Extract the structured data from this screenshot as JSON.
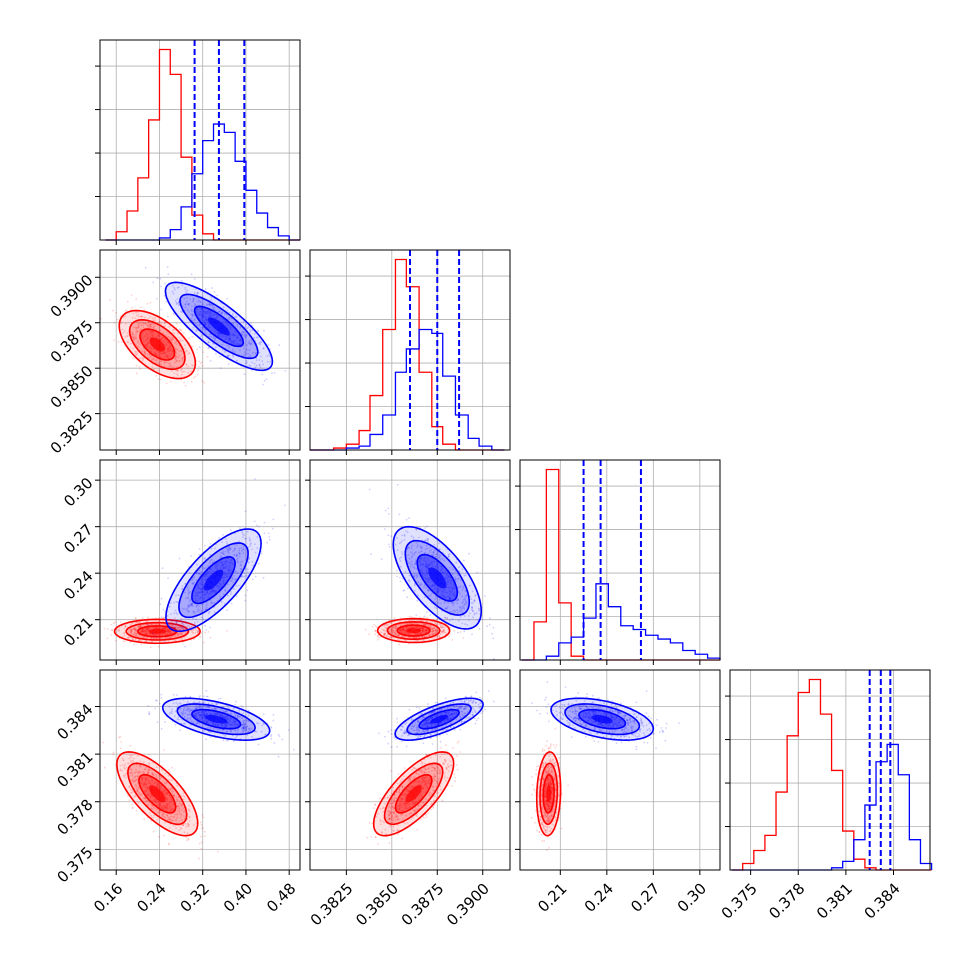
{
  "chart_data": {
    "type": "corner",
    "colors": {
      "series_a": "#ff0000",
      "series_b": "#0000ff"
    },
    "grid": true,
    "parameters": [
      {
        "id": "p0",
        "range": [
          0.13,
          0.5
        ],
        "ticks": [
          "0.16",
          "0.24",
          "0.32",
          "0.40",
          "0.48"
        ]
      },
      {
        "id": "p1",
        "range": [
          0.3805,
          0.3915
        ],
        "ticks": [
          "0.3825",
          "0.3850",
          "0.3875",
          "0.3900"
        ]
      },
      {
        "id": "p2",
        "range": [
          0.184,
          0.313
        ],
        "ticks": [
          "0.21",
          "0.24",
          "0.27",
          "0.30"
        ]
      },
      {
        "id": "p3",
        "range": [
          0.3737,
          0.3863
        ],
        "ticks": [
          "0.375",
          "0.378",
          "0.381",
          "0.384"
        ]
      }
    ],
    "series_b_quantiles": {
      "p0": [
        0.305,
        0.35,
        0.397
      ],
      "p1": [
        0.386,
        0.3875,
        0.3887
      ],
      "p2": [
        0.225,
        0.236,
        0.262
      ],
      "p3": [
        0.3825,
        0.3832,
        0.3838
      ]
    },
    "histograms": [
      {
        "param": "p0",
        "bins": [
          0.14,
          0.16,
          0.18,
          0.2,
          0.22,
          0.24,
          0.26,
          0.28,
          0.3,
          0.32,
          0.34,
          0.36,
          0.38,
          0.4,
          0.42,
          0.44,
          0.46,
          0.48,
          0.5
        ],
        "series_a": [
          0,
          4,
          14,
          30,
          58,
          92,
          80,
          40,
          12,
          3,
          0,
          0,
          0,
          0,
          0,
          0,
          0,
          0
        ],
        "series_b": [
          0,
          0,
          0,
          0,
          0,
          1,
          5,
          16,
          32,
          48,
          56,
          52,
          38,
          24,
          13,
          6,
          2,
          0
        ]
      },
      {
        "param": "p1",
        "bins": [
          0.3805,
          0.3812,
          0.3818,
          0.3825,
          0.3832,
          0.3838,
          0.3845,
          0.3852,
          0.3858,
          0.3865,
          0.3872,
          0.3878,
          0.3885,
          0.3892,
          0.3898,
          0.3905,
          0.3912
        ],
        "series_a": [
          0,
          0,
          1,
          3,
          10,
          28,
          62,
          98,
          84,
          40,
          12,
          3,
          0,
          0,
          0,
          0
        ],
        "series_b": [
          0,
          0,
          0,
          1,
          2,
          8,
          18,
          40,
          52,
          62,
          60,
          38,
          18,
          6,
          2,
          0
        ]
      },
      {
        "param": "p2",
        "bins": [
          0.185,
          0.193,
          0.201,
          0.209,
          0.217,
          0.225,
          0.233,
          0.241,
          0.249,
          0.257,
          0.265,
          0.273,
          0.281,
          0.289,
          0.297,
          0.305,
          0.313
        ],
        "series_a": [
          0,
          20,
          100,
          30,
          2,
          0,
          0,
          0,
          0,
          0,
          0,
          0,
          0,
          0,
          0,
          0
        ],
        "series_b": [
          0,
          0,
          2,
          9,
          12,
          22,
          40,
          28,
          18,
          16,
          13,
          11,
          9,
          5,
          3,
          1
        ]
      },
      {
        "param": "p3",
        "bins": [
          0.3738,
          0.3745,
          0.3752,
          0.3759,
          0.3766,
          0.3773,
          0.378,
          0.3787,
          0.3794,
          0.3801,
          0.3808,
          0.3815,
          0.3822,
          0.3829,
          0.3836,
          0.3843,
          0.385,
          0.3857,
          0.3864
        ],
        "series_a": [
          0,
          3,
          9,
          16,
          36,
          62,
          82,
          88,
          72,
          46,
          18,
          5,
          1,
          0,
          0,
          0,
          0,
          0
        ],
        "series_b": [
          0,
          0,
          0,
          0,
          0,
          0,
          0,
          0,
          0,
          1,
          4,
          14,
          30,
          50,
          58,
          44,
          14,
          3
        ]
      }
    ],
    "pairs": [
      {
        "x": "p0",
        "y": "p1",
        "series_a": {
          "mean": [
            0.236,
            0.3863
          ],
          "std": [
            0.032,
            0.00085
          ],
          "rho": -0.55
        },
        "series_b": {
          "mean": [
            0.35,
            0.3873
          ],
          "std": [
            0.045,
            0.0011
          ],
          "rho": -0.8
        }
      },
      {
        "x": "p0",
        "y": "p2",
        "series_a": {
          "mean": [
            0.236,
            0.2025
          ],
          "std": [
            0.036,
            0.0035
          ],
          "rho": 0.0
        },
        "series_b": {
          "mean": [
            0.34,
            0.2355
          ],
          "std": [
            0.04,
            0.015
          ],
          "rho": 0.72
        }
      },
      {
        "x": "p1",
        "y": "p2",
        "series_a": {
          "mean": [
            0.3862,
            0.203
          ],
          "std": [
            0.0009,
            0.0035
          ],
          "rho": 0.0
        },
        "series_b": {
          "mean": [
            0.3875,
            0.237
          ],
          "std": [
            0.0011,
            0.015
          ],
          "rho": -0.65
        }
      },
      {
        "x": "p0",
        "y": "p3",
        "series_a": {
          "mean": [
            0.236,
            0.3785
          ],
          "std": [
            0.034,
            0.0012
          ],
          "rho": -0.7
        },
        "series_b": {
          "mean": [
            0.345,
            0.3832
          ],
          "std": [
            0.045,
            0.0006
          ],
          "rho": -0.55
        }
      },
      {
        "x": "p1",
        "y": "p3",
        "series_a": {
          "mean": [
            0.3862,
            0.3785
          ],
          "std": [
            0.001,
            0.0012
          ],
          "rho": 0.72
        },
        "series_b": {
          "mean": [
            0.3876,
            0.3832
          ],
          "std": [
            0.0011,
            0.0006
          ],
          "rho": 0.7
        }
      },
      {
        "x": "p2",
        "y": "p3",
        "series_a": {
          "mean": [
            0.2025,
            0.3785
          ],
          "std": [
            0.0035,
            0.0012
          ],
          "rho": 0.1
        },
        "series_b": {
          "mean": [
            0.237,
            0.3832
          ],
          "std": [
            0.015,
            0.0006
          ],
          "rho": -0.45
        }
      }
    ]
  }
}
